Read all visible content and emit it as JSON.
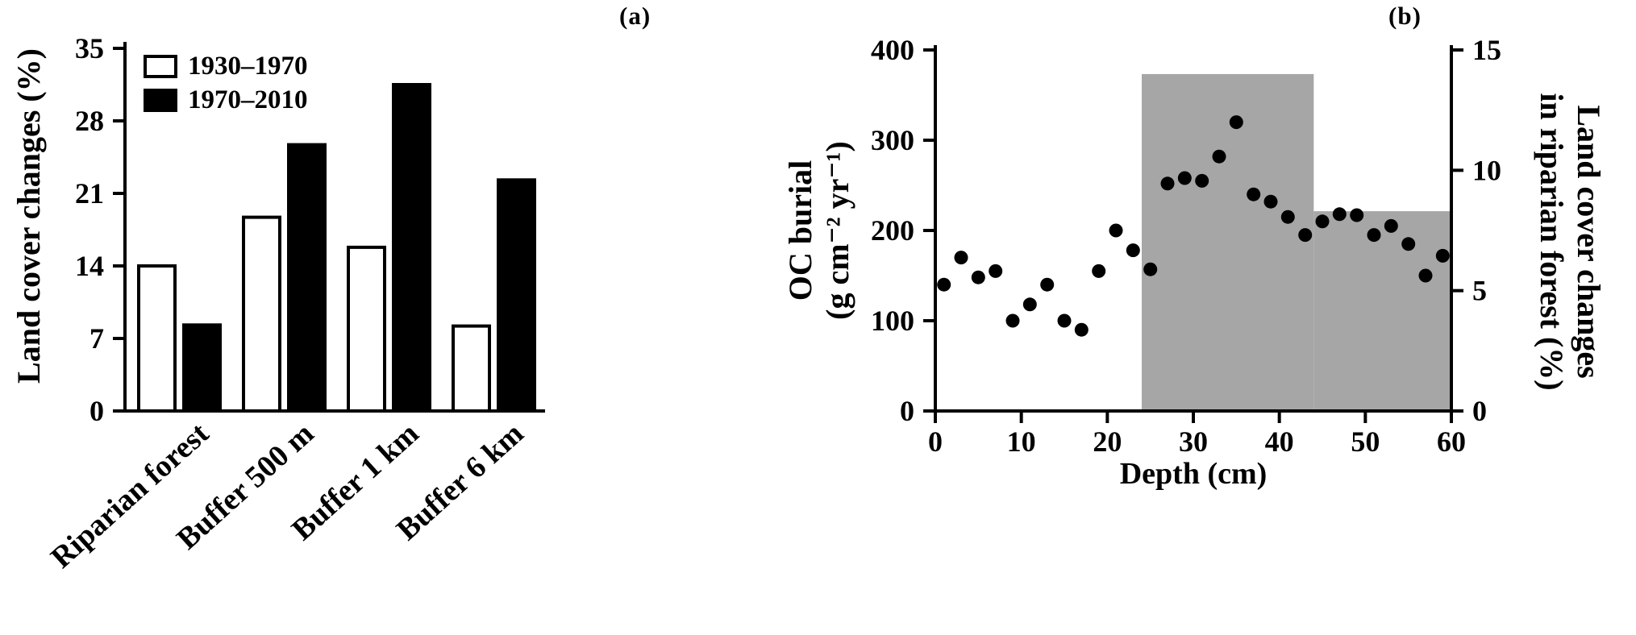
{
  "figure": {
    "background": "#ffffff"
  },
  "chart_data": [
    {
      "type": "bar",
      "panel_label": "(a)",
      "ylabel": "Land cover changes (%)",
      "ylim": [
        0,
        35
      ],
      "yticks": [
        0,
        7,
        14,
        21,
        28,
        35
      ],
      "categories": [
        "Riparian forest",
        "Buffer 500 m",
        "Buffer 1 km",
        "Buffer 6 km"
      ],
      "series": [
        {
          "name": "1930–1970",
          "fill": "#ffffff",
          "values": [
            14.0,
            18.7,
            15.8,
            8.2
          ]
        },
        {
          "name": "1970–2010",
          "fill": "#000000",
          "values": [
            8.3,
            25.7,
            31.5,
            22.3
          ]
        }
      ],
      "legend_position": "top-left",
      "bar_outline_color": "#000000",
      "grid": false
    },
    {
      "type": "scatter",
      "panel_label": "(b)",
      "xlabel": "Depth (cm)",
      "xlim": [
        0,
        60
      ],
      "xticks": [
        0,
        10,
        20,
        30,
        40,
        50,
        60
      ],
      "left_axis": {
        "label_line1": "OC burial",
        "label_line2": "(g cm⁻² yr⁻¹)",
        "ylim": [
          0,
          400
        ],
        "yticks": [
          0,
          100,
          200,
          300,
          400
        ]
      },
      "right_axis": {
        "label_line1": "Land cover changes",
        "label_line2": "in riparian forest (%)",
        "ylim": [
          0,
          15
        ],
        "yticks": [
          0,
          5,
          10,
          15
        ]
      },
      "series": [
        {
          "name": "Land cover changes in riparian forest",
          "type": "step_area",
          "axis": "right",
          "color": "#a6a6a6",
          "segments": [
            {
              "x_start": 24,
              "x_end": 44,
              "value": 14.0
            },
            {
              "x_start": 44,
              "x_end": 60,
              "value": 8.3
            }
          ]
        },
        {
          "name": "OC burial",
          "type": "points",
          "marker": "circle",
          "axis": "left",
          "color": "#000000",
          "points": [
            [
              1,
              140
            ],
            [
              3,
              170
            ],
            [
              5,
              148
            ],
            [
              7,
              155
            ],
            [
              9,
              100
            ],
            [
              11,
              118
            ],
            [
              13,
              140
            ],
            [
              15,
              100
            ],
            [
              17,
              90
            ],
            [
              19,
              155
            ],
            [
              21,
              200
            ],
            [
              23,
              178
            ],
            [
              25,
              157
            ],
            [
              27,
              252
            ],
            [
              29,
              258
            ],
            [
              31,
              255
            ],
            [
              33,
              282
            ],
            [
              35,
              320
            ],
            [
              37,
              240
            ],
            [
              39,
              232
            ],
            [
              41,
              215
            ],
            [
              43,
              195
            ],
            [
              45,
              210
            ],
            [
              47,
              218
            ],
            [
              49,
              217
            ],
            [
              51,
              195
            ],
            [
              53,
              205
            ],
            [
              55,
              185
            ],
            [
              57,
              150
            ],
            [
              59,
              172
            ]
          ]
        }
      ],
      "grid": false
    }
  ]
}
